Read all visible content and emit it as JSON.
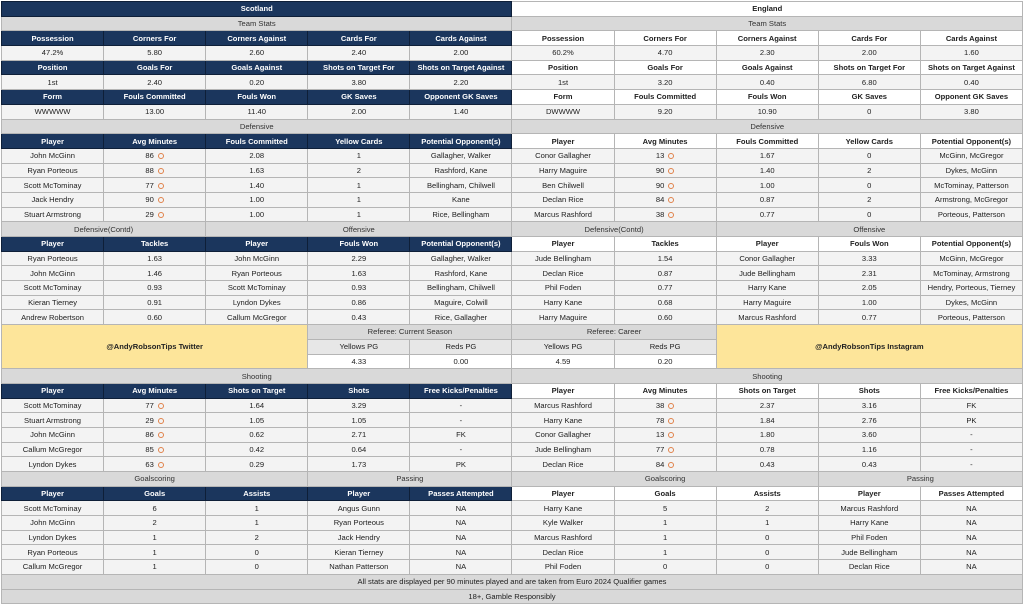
{
  "labels": {
    "team_stats": "Team Stats"
  },
  "teams": [
    {
      "name": "Scotland",
      "team_stats": [
        {
          "labels": [
            "Possession",
            "Corners For",
            "Corners Against",
            "Cards For",
            "Cards Against"
          ],
          "values": [
            "47.2%",
            "5.80",
            "2.60",
            "2.40",
            "2.00"
          ]
        },
        {
          "labels": [
            "Position",
            "Goals For",
            "Goals Against",
            "Shots on Target For",
            "Shots on Target Against"
          ],
          "values": [
            "1st",
            "2.40",
            "0.20",
            "3.80",
            "2.20"
          ]
        },
        {
          "labels": [
            "Form",
            "Fouls Committed",
            "Fouls Won",
            "GK Saves",
            "Opponent GK Saves"
          ],
          "values": [
            "WWWWW",
            "13.00",
            "11.40",
            "2.00",
            "1.40"
          ]
        }
      ],
      "defensive": {
        "title": "Defensive",
        "headers": [
          "Player",
          "Avg Minutes",
          "Fouls Committed",
          "Yellow Cards",
          "Potential Opponent(s)"
        ],
        "rows": [
          [
            "John McGinn",
            "86",
            "2.08",
            "1",
            "Gallagher, Walker"
          ],
          [
            "Ryan Porteous",
            "88",
            "1.63",
            "2",
            "Rashford, Kane"
          ],
          [
            "Scott McTominay",
            "77",
            "1.40",
            "1",
            "Bellingham, Chilwell"
          ],
          [
            "Jack Hendry",
            "90",
            "1.00",
            "1",
            "Kane"
          ],
          [
            "Stuart Armstrong",
            "29",
            "1.00",
            "1",
            "Rice, Bellingham"
          ]
        ]
      },
      "defensive_contd": {
        "title": "Defensive(Contd)",
        "headers": [
          "Player",
          "Tackles"
        ],
        "rows": [
          [
            "Ryan Porteous",
            "1.63"
          ],
          [
            "John McGinn",
            "1.46"
          ],
          [
            "Scott McTominay",
            "0.93"
          ],
          [
            "Kieran Tierney",
            "0.91"
          ],
          [
            "Andrew Robertson",
            "0.60"
          ]
        ]
      },
      "offensive": {
        "title": "Offensive",
        "headers": [
          "Player",
          "Fouls Won",
          "Potential Opponent(s)"
        ],
        "rows": [
          [
            "John McGinn",
            "2.29",
            "Gallagher, Walker"
          ],
          [
            "Ryan Porteous",
            "1.63",
            "Rashford, Kane"
          ],
          [
            "Scott McTominay",
            "0.93",
            "Bellingham, Chilwell"
          ],
          [
            "Lyndon Dykes",
            "0.86",
            "Maguire, Colwill"
          ],
          [
            "Callum McGregor",
            "0.43",
            "Rice, Gallagher"
          ]
        ]
      },
      "shooting": {
        "title": "Shooting",
        "headers": [
          "Player",
          "Avg Minutes",
          "Shots on Target",
          "Shots",
          "Free Kicks/Penalties"
        ],
        "rows": [
          [
            "Scott McTominay",
            "77",
            "1.64",
            "3.29",
            "-"
          ],
          [
            "Stuart Armstrong",
            "29",
            "1.05",
            "1.05",
            "-"
          ],
          [
            "John McGinn",
            "86",
            "0.62",
            "2.71",
            "FK"
          ],
          [
            "Callum McGregor",
            "85",
            "0.42",
            "0.64",
            "-"
          ],
          [
            "Lyndon Dykes",
            "63",
            "0.29",
            "1.73",
            "PK"
          ]
        ]
      },
      "goalscoring": {
        "title": "Goalscoring",
        "headers": [
          "Player",
          "Goals",
          "Assists"
        ],
        "rows": [
          [
            "Scott McTominay",
            "6",
            "1"
          ],
          [
            "John McGinn",
            "2",
            "1"
          ],
          [
            "Lyndon Dykes",
            "1",
            "2"
          ],
          [
            "Ryan Porteous",
            "1",
            "0"
          ],
          [
            "Callum McGregor",
            "1",
            "0"
          ]
        ]
      },
      "passing": {
        "title": "Passing",
        "headers": [
          "Player",
          "Passes Attempted"
        ],
        "rows": [
          [
            "Angus Gunn",
            "NA"
          ],
          [
            "Ryan Porteous",
            "NA"
          ],
          [
            "Jack Hendry",
            "NA"
          ],
          [
            "Kieran Tierney",
            "NA"
          ],
          [
            "Nathan Patterson",
            "NA"
          ]
        ]
      }
    },
    {
      "name": "England",
      "team_stats": [
        {
          "labels": [
            "Possession",
            "Corners For",
            "Corners Against",
            "Cards For",
            "Cards Against"
          ],
          "values": [
            "60.2%",
            "4.70",
            "2.30",
            "2.00",
            "1.60"
          ]
        },
        {
          "labels": [
            "Position",
            "Goals For",
            "Goals Against",
            "Shots on Target For",
            "Shots on Target Against"
          ],
          "values": [
            "1st",
            "3.20",
            "0.40",
            "6.80",
            "0.40"
          ]
        },
        {
          "labels": [
            "Form",
            "Fouls Committed",
            "Fouls Won",
            "GK Saves",
            "Opponent GK Saves"
          ],
          "values": [
            "DWWWW",
            "9.20",
            "10.90",
            "0",
            "3.80"
          ]
        }
      ],
      "defensive": {
        "title": "Defensive",
        "headers": [
          "Player",
          "Avg Minutes",
          "Fouls Committed",
          "Yellow Cards",
          "Potential Opponent(s)"
        ],
        "rows": [
          [
            "Conor Gallagher",
            "13",
            "1.67",
            "0",
            "McGinn, McGregor"
          ],
          [
            "Harry Maguire",
            "90",
            "1.40",
            "2",
            "Dykes, McGinn"
          ],
          [
            "Ben Chilwell",
            "90",
            "1.00",
            "0",
            "McTominay, Patterson"
          ],
          [
            "Declan Rice",
            "84",
            "0.87",
            "2",
            "Armstrong, McGregor"
          ],
          [
            "Marcus Rashford",
            "38",
            "0.77",
            "0",
            "Porteous, Patterson"
          ]
        ]
      },
      "defensive_contd": {
        "title": "Defensive(Contd)",
        "headers": [
          "Player",
          "Tackles"
        ],
        "rows": [
          [
            "Jude Bellingham",
            "1.54"
          ],
          [
            "Declan Rice",
            "0.87"
          ],
          [
            "Phil Foden",
            "0.77"
          ],
          [
            "Harry Kane",
            "0.68"
          ],
          [
            "Harry Maguire",
            "0.60"
          ]
        ]
      },
      "offensive": {
        "title": "Offensive",
        "headers": [
          "Player",
          "Fouls Won",
          "Potential Opponent(s)"
        ],
        "rows": [
          [
            "Conor Gallagher",
            "3.33",
            "McGinn, McGregor"
          ],
          [
            "Jude Bellingham",
            "2.31",
            "McTominay, Armstrong"
          ],
          [
            "Harry Kane",
            "2.05",
            "Hendry, Porteous, Tierney"
          ],
          [
            "Harry Maguire",
            "1.00",
            "Dykes, McGinn"
          ],
          [
            "Marcus Rashford",
            "0.77",
            "Porteous, Patterson"
          ]
        ]
      },
      "shooting": {
        "title": "Shooting",
        "headers": [
          "Player",
          "Avg Minutes",
          "Shots on Target",
          "Shots",
          "Free Kicks/Penalties"
        ],
        "rows": [
          [
            "Marcus Rashford",
            "38",
            "2.37",
            "3.16",
            "FK"
          ],
          [
            "Harry Kane",
            "78",
            "1.84",
            "2.76",
            "PK"
          ],
          [
            "Conor Gallagher",
            "13",
            "1.80",
            "3.60",
            "-"
          ],
          [
            "Jude Bellingham",
            "77",
            "0.78",
            "1.16",
            "-"
          ],
          [
            "Declan Rice",
            "84",
            "0.43",
            "0.43",
            "-"
          ]
        ]
      },
      "goalscoring": {
        "title": "Goalscoring",
        "headers": [
          "Player",
          "Goals",
          "Assists"
        ],
        "rows": [
          [
            "Harry Kane",
            "5",
            "2"
          ],
          [
            "Kyle Walker",
            "1",
            "1"
          ],
          [
            "Marcus Rashford",
            "1",
            "0"
          ],
          [
            "Declan Rice",
            "1",
            "0"
          ],
          [
            "Phil Foden",
            "0",
            "0"
          ]
        ]
      },
      "passing": {
        "title": "Passing",
        "headers": [
          "Player",
          "Passes Attempted"
        ],
        "rows": [
          [
            "Marcus Rashford",
            "NA"
          ],
          [
            "Harry Kane",
            "NA"
          ],
          [
            "Phil Foden",
            "NA"
          ],
          [
            "Jude Bellingham",
            "NA"
          ],
          [
            "Declan Rice",
            "NA"
          ]
        ]
      }
    }
  ],
  "referee": {
    "current_season": {
      "title": "Referee: Current Season",
      "headers": [
        "Yellows PG",
        "Reds PG"
      ],
      "values": [
        "4.33",
        "0.00"
      ]
    },
    "career": {
      "title": "Referee: Career",
      "headers": [
        "Yellows PG",
        "Reds PG"
      ],
      "values": [
        "4.59",
        "0.20"
      ]
    }
  },
  "social": {
    "twitter": "@AndyRobsonTips Twitter",
    "instagram": "@AndyRobsonTips Instagram"
  },
  "footer": [
    "All stats are displayed per 90 minutes played and are taken from Euro 2024 Qualifier games",
    "18+, Gamble Responsibly"
  ],
  "colors": {
    "scotland_header": "#1b365d",
    "section": "#d9d9d9",
    "social": "#fde59a",
    "stopwatch": "#e0824a"
  },
  "icons": {
    "avg_minutes": "stopwatch-icon"
  }
}
